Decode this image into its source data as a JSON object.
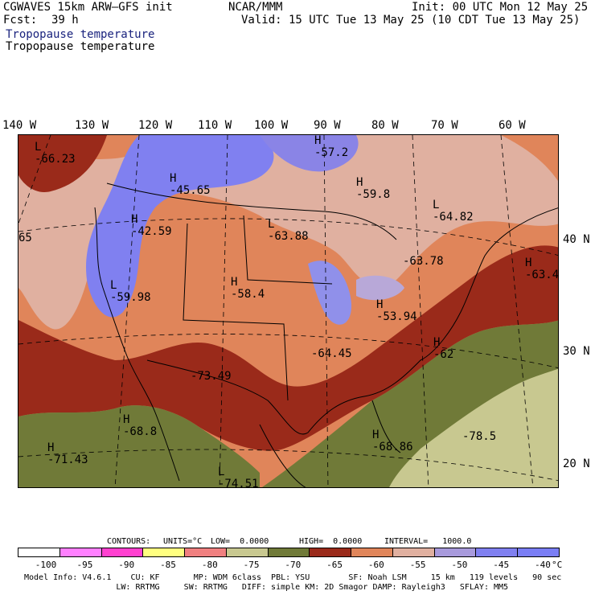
{
  "header": {
    "model": "CGWAVES 15km ARW—GFS init",
    "org": "NCAR/MMM",
    "init": "Init: 00 UTC Mon 12 May 25",
    "fcst_label": "Fcst:",
    "fcst_value": "39 h",
    "valid": "Valid: 15 UTC Tue 13 May 25 (10 CDT Tue 13 May 25)",
    "field_title_1": "Tropopause temperature",
    "field_title_2": "Tropopause temperature"
  },
  "longitudes": [
    "140 W",
    "130 W",
    "120 W",
    "110 W",
    "100 W",
    "90 W",
    "80 W",
    "70 W",
    "60 W"
  ],
  "latitudes": [
    "40 N",
    "30 N",
    "20 N"
  ],
  "map_labels": [
    {
      "letter": "L",
      "value": "-66.23"
    },
    {
      "letter": "H",
      "value": "-57.2"
    },
    {
      "letter": "H",
      "value": "-45.65"
    },
    {
      "letter": "H",
      "value": "-59.8"
    },
    {
      "letter": "H",
      "value": "-42.59"
    },
    {
      "letter": "L",
      "value": "-63.88"
    },
    {
      "letter": "L",
      "value": "-64.82"
    },
    {
      "letter": "",
      "value": "-63.78"
    },
    {
      "letter": "H",
      "value": "-63.4"
    },
    {
      "letter": "L",
      "value": "-59.98"
    },
    {
      "letter": "H",
      "value": "-58.4"
    },
    {
      "letter": "H",
      "value": "-53.94"
    },
    {
      "letter": "",
      "value": "-64.45"
    },
    {
      "letter": "H",
      "value": "-62"
    },
    {
      "letter": "",
      "value": "-73.49"
    },
    {
      "letter": "H",
      "value": "-68.8"
    },
    {
      "letter": "H",
      "value": "-68.86"
    },
    {
      "letter": "",
      "value": "-78.5"
    },
    {
      "letter": "H",
      "value": "-71.43"
    },
    {
      "letter": "L",
      "value": "-74.51"
    },
    {
      "letter": "",
      "value": "65"
    }
  ],
  "contours_line": {
    "contours": "CONTOURS:",
    "units": "UNITS=°C",
    "low": "LOW=  0.0000",
    "high": "HIGH=  0.0000",
    "interval": "INTERVAL=   1000.0"
  },
  "color_scale": {
    "colors": [
      "#ffffff",
      "#ff80ff",
      "#ff40d0",
      "#ffff80",
      "#f08080",
      "#c8c890",
      "#707a38",
      "#9a2a1a",
      "#e0855a",
      "#e0b0a0",
      "#a89adc",
      "#8080f0",
      "#7a7ef5"
    ],
    "ticks": [
      "-100",
      "-95",
      "-90",
      "-85",
      "-80",
      "-75",
      "-70",
      "-65",
      "-60",
      "-55",
      "-50",
      "-45",
      "-40"
    ],
    "unit": "°C"
  },
  "model_info": {
    "line1": "Model Info: V4.6.1    CU: KF       MP: WDM 6class  PBL: YSU        SF: Noah LSM     15 km   119 levels   90 sec",
    "line2": "                   LW: RRTMG     SW: RRTMG   DIFF: simple KM: 2D Smagor DAMP: Rayleigh3   SFLAY: MM5"
  },
  "colors": {
    "cold_blue": "#8080f0",
    "pale_blue": "#a89adc",
    "pink": "#e0b0a0",
    "orange": "#e0855a",
    "red_brown": "#9a2a1a",
    "olive": "#707a38",
    "khaki": "#c8c890"
  }
}
